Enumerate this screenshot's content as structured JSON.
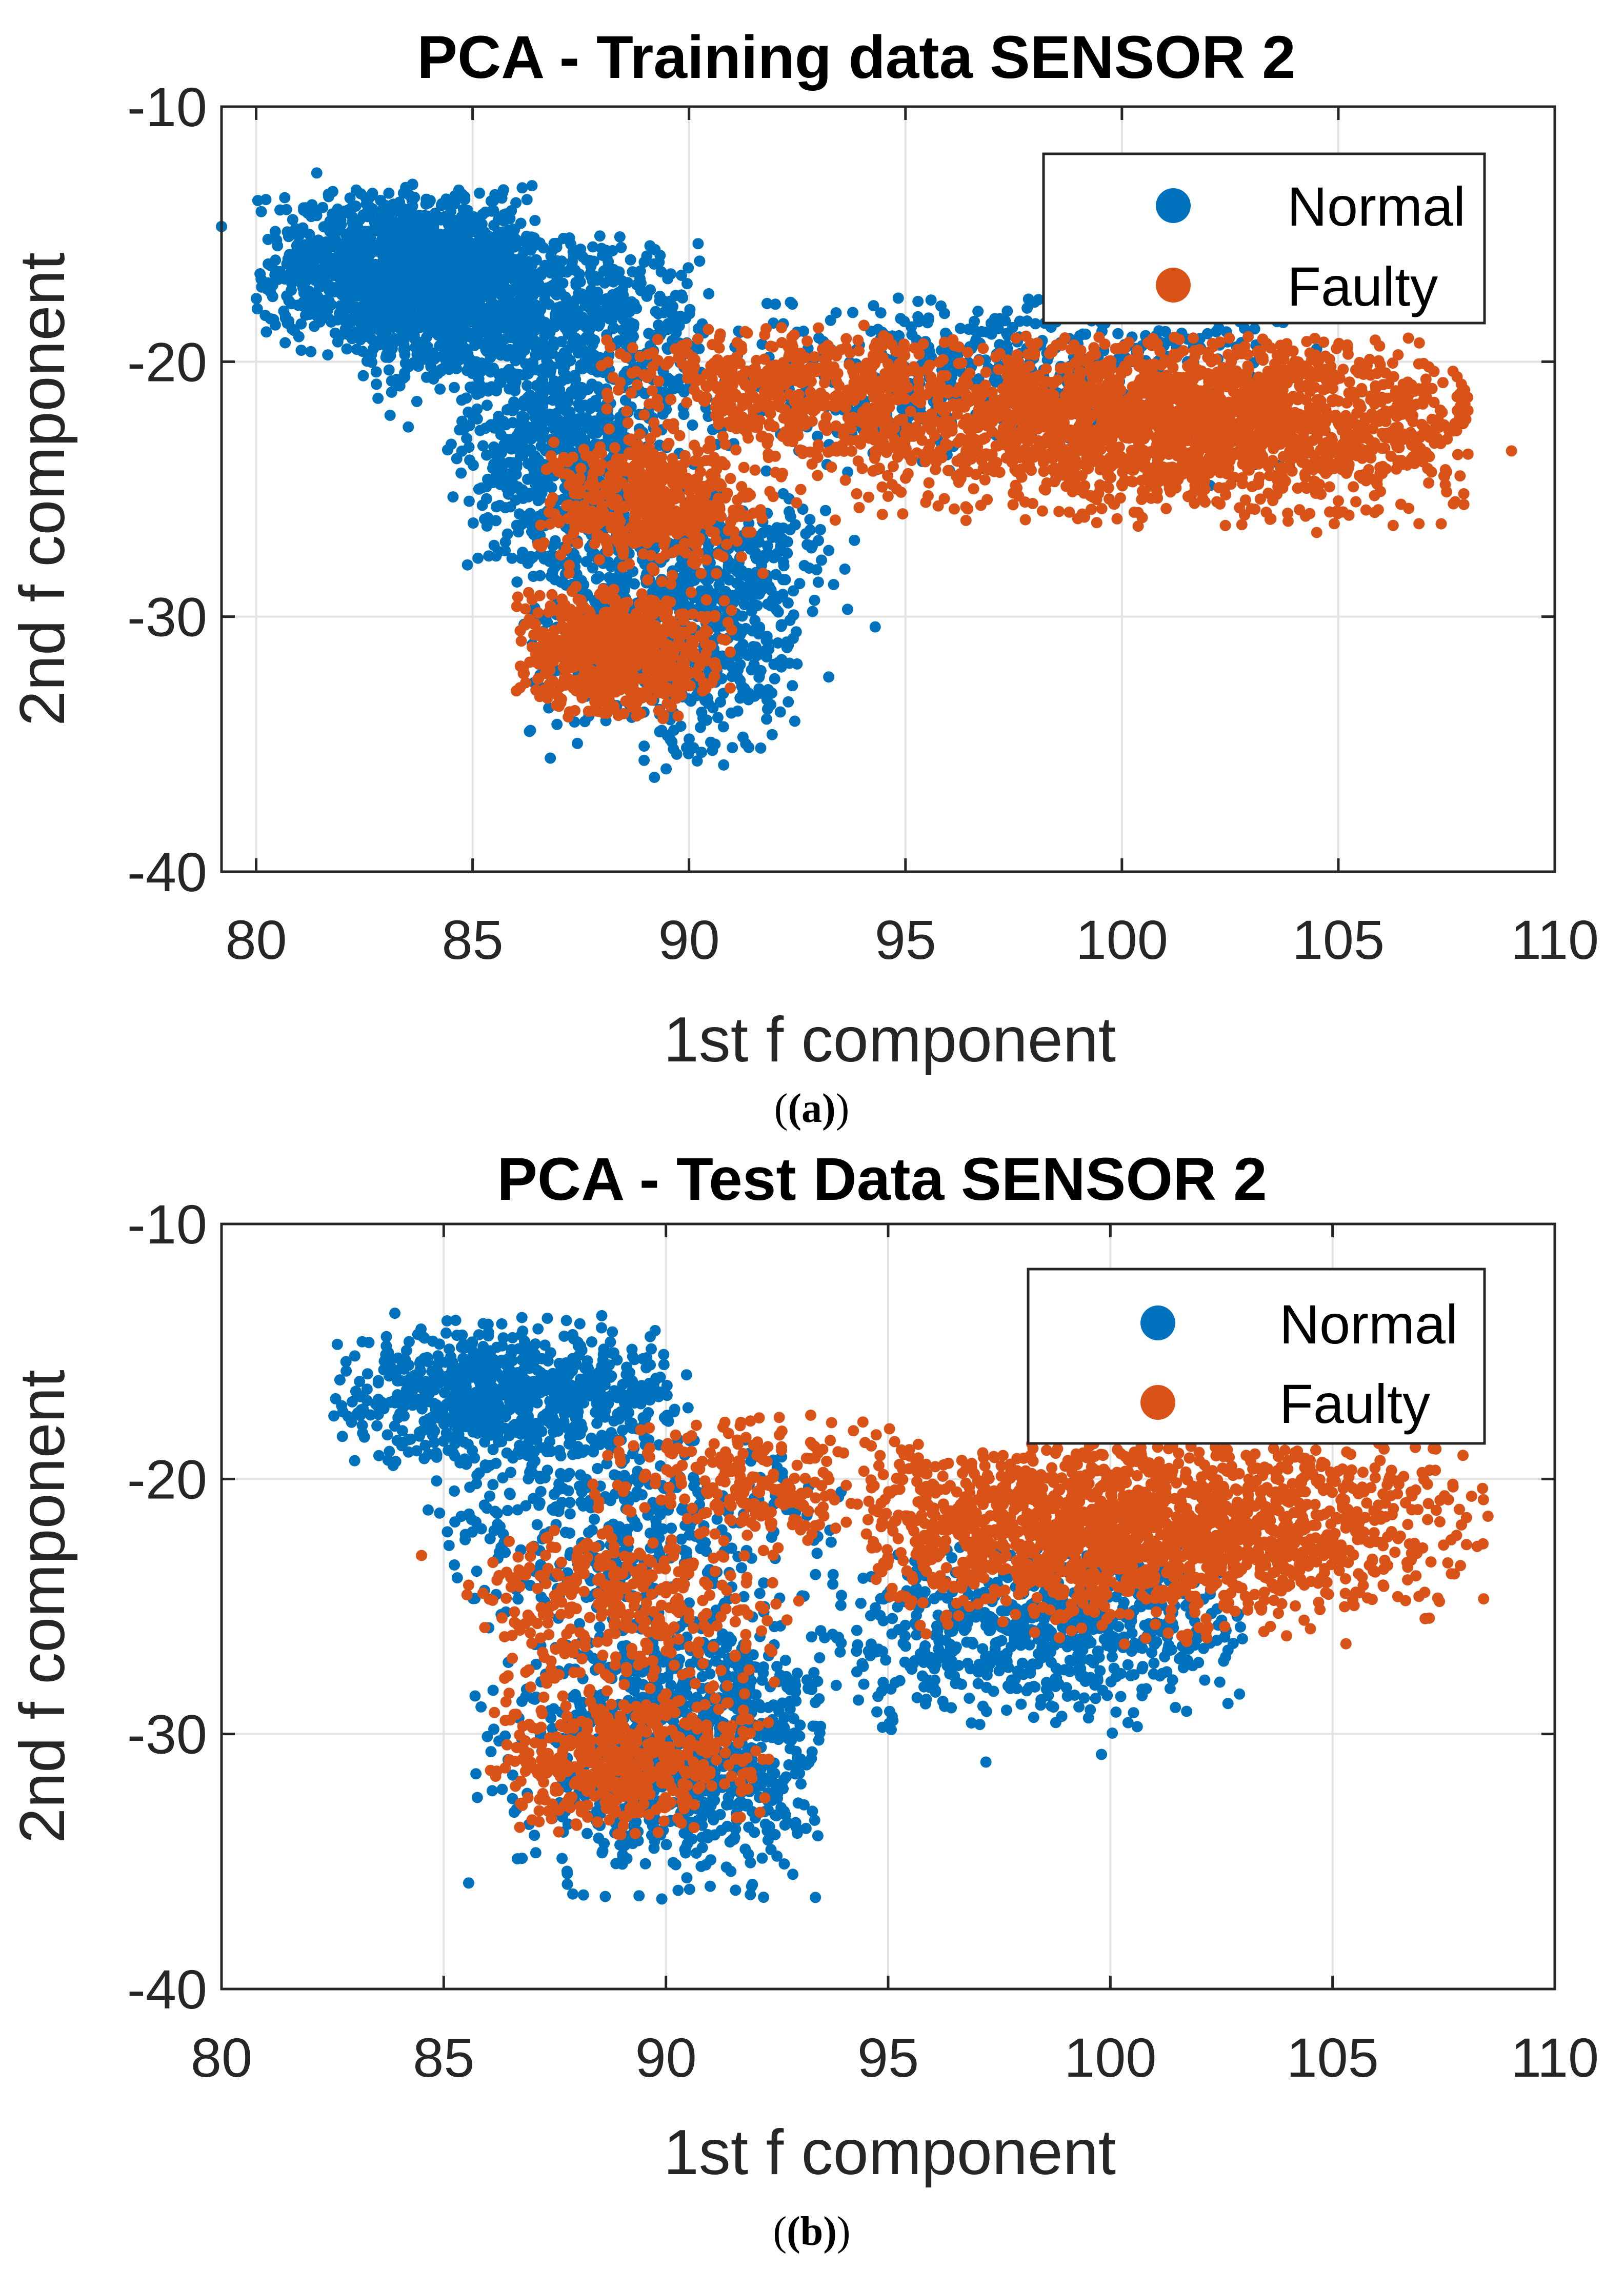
{
  "colors": {
    "normal": "#0072BD",
    "faulty": "#D95319",
    "axis": "#262626",
    "grid": "#e3e3e3"
  },
  "chart_data": [
    {
      "panel": "a",
      "type": "scatter",
      "title": "PCA - Training data SENSOR 2",
      "xlabel": "1st f component",
      "ylabel": "2nd f component",
      "xlim": [
        79.2,
        110
      ],
      "ylim": [
        -40,
        -10
      ],
      "xticks": [
        80,
        85,
        90,
        95,
        100,
        105,
        110
      ],
      "yticks": [
        -10,
        -20,
        -30,
        -40
      ],
      "grid": true,
      "legend": {
        "position": "top-right",
        "entries": [
          "Normal",
          "Faulty"
        ]
      },
      "series": [
        {
          "name": "Normal",
          "color": "#0072BD",
          "clusters": [
            {
              "x": [
                80,
                86.5
              ],
              "y": [
                -13,
                -20
              ],
              "cx": 83.5,
              "cy": -16.5,
              "n": 1400
            },
            {
              "x": [
                82,
                90.5
              ],
              "y": [
                -15,
                -24
              ],
              "cx": 86.5,
              "cy": -18.5,
              "n": 900
            },
            {
              "x": [
                84.5,
                89.5
              ],
              "y": [
                -20,
                -28
              ],
              "cx": 87,
              "cy": -24,
              "n": 500
            },
            {
              "x": [
                86,
                92.5
              ],
              "y": [
                -25,
                -36
              ],
              "cx": 89.5,
              "cy": -30,
              "n": 800
            },
            {
              "x": [
                90,
                94
              ],
              "y": [
                -25,
                -33
              ],
              "cx": 91.5,
              "cy": -28,
              "n": 120
            },
            {
              "x": [
                89,
                104
              ],
              "y": [
                -17.5,
                -25
              ],
              "cx": 97,
              "cy": -20.5,
              "n": 600
            }
          ],
          "extreme_points": [
            [
              79.2,
              -14.7
            ],
            [
              81.4,
              -12.6
            ],
            [
              89.2,
              -36.3
            ],
            [
              94.3,
              -30.4
            ],
            [
              104.5,
              -19.5
            ]
          ]
        },
        {
          "name": "Faulty",
          "color": "#D95319",
          "clusters": [
            {
              "x": [
                91,
                108
              ],
              "y": [
                -19,
                -26.5
              ],
              "cx": 101,
              "cy": -22.3,
              "n": 2200
            },
            {
              "x": [
                87.5,
                96
              ],
              "y": [
                -18.5,
                -24
              ],
              "cx": 92,
              "cy": -21,
              "n": 400
            },
            {
              "x": [
                86.5,
                92
              ],
              "y": [
                -23,
                -28.5
              ],
              "cx": 89,
              "cy": -25.5,
              "n": 500
            },
            {
              "x": [
                86,
                91
              ],
              "y": [
                -28.5,
                -34
              ],
              "cx": 88.3,
              "cy": -31.3,
              "n": 700
            }
          ],
          "extreme_points": [
            [
              109,
              -23.5
            ],
            [
              107.8,
              -22.2
            ],
            [
              107.9,
              -25.6
            ],
            [
              104.5,
              -26.7
            ]
          ]
        }
      ]
    },
    {
      "panel": "b",
      "type": "scatter",
      "title": "PCA - Test Data SENSOR 2",
      "xlabel": "1st f component",
      "ylabel": "2nd f component",
      "xlim": [
        80,
        110
      ],
      "ylim": [
        -40,
        -10
      ],
      "xticks": [
        80,
        85,
        90,
        95,
        100,
        105,
        110
      ],
      "yticks": [
        -10,
        -20,
        -30,
        -40
      ],
      "grid": true,
      "legend": {
        "position": "top-right",
        "entries": [
          "Normal",
          "Faulty"
        ]
      },
      "series": [
        {
          "name": "Normal",
          "color": "#0072BD",
          "clusters": [
            {
              "x": [
                82.5,
                90.5
              ],
              "y": [
                -13.5,
                -19.5
              ],
              "cx": 86.5,
              "cy": -16.8,
              "n": 800
            },
            {
              "x": [
                84.5,
                94
              ],
              "y": [
                -18,
                -27
              ],
              "cx": 89,
              "cy": -22,
              "n": 400
            },
            {
              "x": [
                85.5,
                93.5
              ],
              "y": [
                -25,
                -36.5
              ],
              "cx": 90.5,
              "cy": -30.5,
              "n": 1000
            },
            {
              "x": [
                93,
                103
              ],
              "y": [
                -22.5,
                -30
              ],
              "cx": 98.5,
              "cy": -26,
              "n": 700
            }
          ],
          "extreme_points": [
            [
              82.8,
              -15.4
            ],
            [
              83.9,
              -13.5
            ],
            [
              91.9,
              -36.3
            ],
            [
              99.8,
              -30.8
            ],
            [
              97.2,
              -31.1
            ]
          ]
        },
        {
          "name": "Faulty",
          "color": "#D95319",
          "clusters": [
            {
              "x": [
                94.5,
                108.5
              ],
              "y": [
                -18.5,
                -26.5
              ],
              "cx": 100.5,
              "cy": -22,
              "n": 1800
            },
            {
              "x": [
                88,
                96
              ],
              "y": [
                -17.5,
                -23
              ],
              "cx": 92,
              "cy": -20,
              "n": 250
            },
            {
              "x": [
                85.5,
                93
              ],
              "y": [
                -22,
                -29
              ],
              "cx": 89,
              "cy": -25,
              "n": 350
            },
            {
              "x": [
                86,
                92.5
              ],
              "y": [
                -28,
                -34
              ],
              "cx": 89,
              "cy": -31,
              "n": 500
            }
          ],
          "extreme_points": [
            [
              84.5,
              -23
            ],
            [
              106.6,
              -19.9
            ],
            [
              108.4,
              -24.7
            ],
            [
              107.9,
              -21.8
            ]
          ]
        }
      ]
    }
  ],
  "captions": [
    "(a)",
    "(b)"
  ]
}
